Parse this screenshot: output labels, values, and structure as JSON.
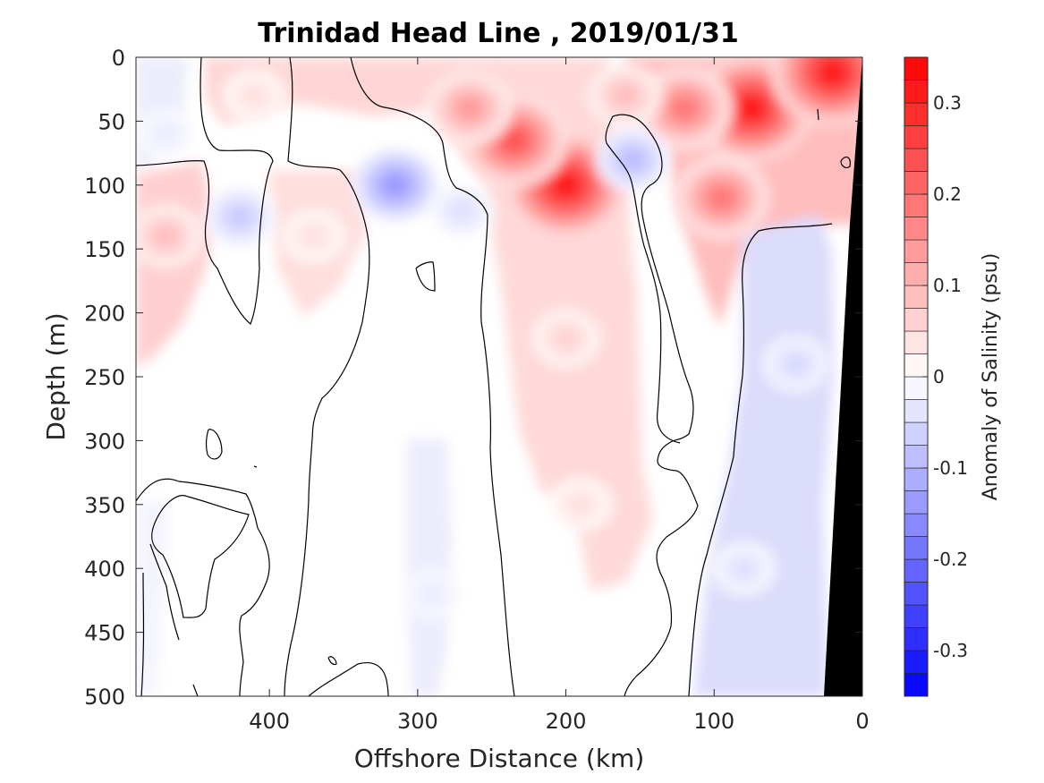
{
  "chart_data": {
    "type": "heatmap",
    "title": "Trinidad Head Line , 2019/01/31",
    "xlabel": "Offshore Distance (km)",
    "ylabel": "Depth (m)",
    "colorbar_label": "Anomaly of Salinity (psu)",
    "x_reversed": true,
    "y_reversed": true,
    "xlim": [
      0,
      490
    ],
    "ylim": [
      0,
      500
    ],
    "x_ticks": [
      400,
      300,
      200,
      100,
      0
    ],
    "y_ticks": [
      0,
      50,
      100,
      150,
      200,
      250,
      300,
      350,
      400,
      450,
      500
    ],
    "colorbar_range": [
      -0.35,
      0.35
    ],
    "colorbar_ticks": [
      0.3,
      0.2,
      0.1,
      0,
      -0.1,
      -0.2,
      -0.3
    ],
    "colormap": {
      "negative": "#0000ff",
      "zero": "#ffffff",
      "positive": "#ff0000"
    },
    "bathymetry_color": "#000000",
    "zero_contour_color": "#000000",
    "anomaly_features": [
      {
        "x": 75,
        "depth": 40,
        "value": 0.33
      },
      {
        "x": 20,
        "depth": 12,
        "value": 0.33
      },
      {
        "x": 120,
        "depth": 40,
        "value": 0.2
      },
      {
        "x": 95,
        "depth": 110,
        "value": 0.2
      },
      {
        "x": 200,
        "depth": 100,
        "value": 0.33
      },
      {
        "x": 235,
        "depth": 65,
        "value": 0.25
      },
      {
        "x": 200,
        "depth": 220,
        "value": 0.07
      },
      {
        "x": 190,
        "depth": 350,
        "value": 0.05
      },
      {
        "x": 265,
        "depth": 40,
        "value": 0.15
      },
      {
        "x": 160,
        "depth": 30,
        "value": 0.1
      },
      {
        "x": 410,
        "depth": 30,
        "value": 0.05
      },
      {
        "x": 470,
        "depth": 140,
        "value": 0.1
      },
      {
        "x": 370,
        "depth": 140,
        "value": 0.05
      },
      {
        "x": 315,
        "depth": 100,
        "value": -0.15
      },
      {
        "x": 155,
        "depth": 80,
        "value": -0.1
      },
      {
        "x": 420,
        "depth": 125,
        "value": -0.08
      },
      {
        "x": 270,
        "depth": 120,
        "value": -0.05
      },
      {
        "x": 470,
        "depth": 60,
        "value": -0.03
      },
      {
        "x": 45,
        "depth": 240,
        "value": -0.06
      },
      {
        "x": 80,
        "depth": 400,
        "value": -0.05
      },
      {
        "x": 290,
        "depth": 420,
        "value": -0.03
      }
    ]
  }
}
